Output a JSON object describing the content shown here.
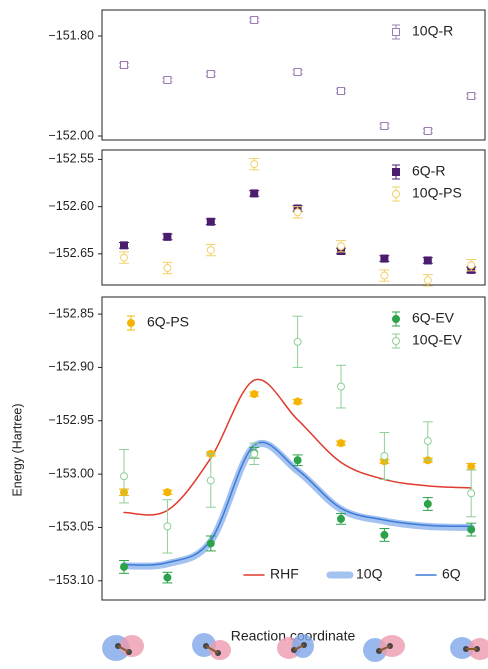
{
  "chart_data": [
    {
      "type": "errorbar",
      "categories": [
        null,
        null,
        null,
        null,
        null,
        null,
        null,
        null,
        null
      ],
      "ylim": [
        -152.008,
        -151.748
      ],
      "yticks": [
        {
          "value": -151.8,
          "label": "−151.80"
        },
        {
          "value": -152.0,
          "label": "−152.00"
        }
      ],
      "series": [
        {
          "name": "10Q-R",
          "color": "#9b7cb8",
          "marker": "square",
          "filled": false,
          "legend": "upper right",
          "values": [
            -151.858,
            -151.888,
            -151.876,
            -151.768,
            -151.872,
            -151.91,
            -151.98,
            -151.99,
            -151.92
          ],
          "errors": [
            0.004,
            0.004,
            0.004,
            0.004,
            0.004,
            0.004,
            0.004,
            0.004,
            0.004
          ]
        }
      ]
    },
    {
      "type": "errorbar",
      "categories": [
        null,
        null,
        null,
        null,
        null,
        null,
        null,
        null,
        null
      ],
      "ylim": [
        -152.683,
        -152.54
      ],
      "yticks": [
        {
          "value": -152.55,
          "label": "−152.55"
        },
        {
          "value": -152.6,
          "label": "−152.60"
        },
        {
          "value": -152.65,
          "label": "−152.65"
        }
      ],
      "series": [
        {
          "name": "6Q-R",
          "color": "#4b1d6e",
          "marker": "square",
          "filled": true,
          "legend": "upper right",
          "values": [
            -152.641,
            -152.632,
            -152.616,
            -152.586,
            -152.602,
            -152.647,
            -152.655,
            -152.657,
            -152.667
          ],
          "errors": [
            0.003,
            0.003,
            0.003,
            0.003,
            0.003,
            0.003,
            0.003,
            0.003,
            0.003
          ]
        },
        {
          "name": "10Q-PS",
          "color": "#f2d06a",
          "marker": "circle",
          "filled": false,
          "legend": "upper right",
          "values": [
            -152.654,
            -152.665,
            -152.646,
            -152.555,
            -152.606,
            -152.642,
            -152.673,
            -152.678,
            -152.662
          ],
          "errors": [
            0.006,
            0.006,
            0.006,
            0.006,
            0.006,
            0.006,
            0.006,
            0.006,
            0.006
          ]
        }
      ]
    },
    {
      "type": "errorbar",
      "xlabel": "Reaction coordinate",
      "ylabel": "Energy (Hartree)",
      "categories": [
        null,
        null,
        null,
        null,
        null,
        null,
        null,
        null,
        null
      ],
      "ylim": [
        -153.118,
        -152.834
      ],
      "yticks": [
        {
          "value": -152.85,
          "label": "−152.85"
        },
        {
          "value": -152.9,
          "label": "−152.90"
        },
        {
          "value": -152.95,
          "label": "−152.95"
        },
        {
          "value": -153.0,
          "label": "−153.00"
        },
        {
          "value": -153.05,
          "label": "−153.05"
        },
        {
          "value": -153.1,
          "label": "−153.10"
        }
      ],
      "series": [
        {
          "name": "RHF",
          "color": "#e03a2e",
          "kind": "line",
          "width": 1.5,
          "legend": "lower right",
          "values": [
            -153.036,
            -153.034,
            -152.985,
            -152.912,
            -152.949,
            -152.989,
            -153.005,
            -153.011,
            -153.013
          ]
        },
        {
          "name": "10Q",
          "color": "#a4c2f0",
          "kind": "line",
          "width": 7,
          "legend": "lower right",
          "values": [
            -153.086,
            -153.084,
            -153.063,
            -152.974,
            -152.997,
            -153.033,
            -153.044,
            -153.049,
            -153.05
          ]
        },
        {
          "name": "6Q",
          "color": "#3c7bd8",
          "kind": "line",
          "width": 1.5,
          "legend": "lower right",
          "values": [
            -153.085,
            -153.083,
            -153.062,
            -152.973,
            -152.996,
            -153.032,
            -153.043,
            -153.048,
            -153.049
          ]
        },
        {
          "name": "6Q-PS",
          "color": "#f5b400",
          "marker": "circle",
          "filled": true,
          "legend": "upper left",
          "values": [
            -153.017,
            -153.017,
            -152.981,
            -152.925,
            -152.932,
            -152.971,
            -152.988,
            -152.987,
            -152.993
          ],
          "errors": [
            0.003,
            0.002,
            0.002,
            0.002,
            0.002,
            0.002,
            0.002,
            0.002,
            0.003
          ]
        },
        {
          "name": "6Q-EV",
          "color": "#2ca24a",
          "marker": "circle",
          "filled": true,
          "legend": "upper right",
          "values": [
            -153.087,
            -153.097,
            -153.065,
            -152.98,
            -152.987,
            -153.042,
            -153.057,
            -153.028,
            -153.052
          ],
          "errors": [
            0.006,
            0.005,
            0.007,
            0.005,
            0.005,
            0.005,
            0.006,
            0.006,
            0.006
          ]
        },
        {
          "name": "10Q-EV",
          "color": "#8fcf97",
          "marker": "circle",
          "filled": false,
          "legend": "upper right",
          "values": [
            -153.002,
            -153.049,
            -153.006,
            -152.981,
            -152.876,
            -152.918,
            -152.983,
            -152.969,
            -153.018
          ],
          "errors": [
            0.025,
            0.025,
            0.025,
            0.01,
            0.024,
            0.02,
            0.022,
            0.018,
            0.022
          ]
        }
      ]
    }
  ]
}
